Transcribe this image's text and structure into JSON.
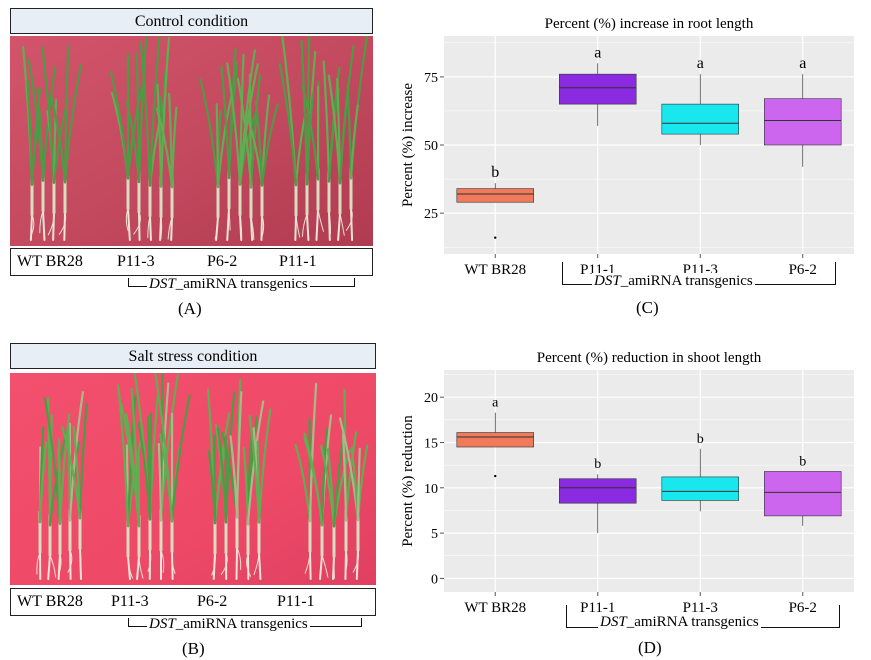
{
  "panels": {
    "A": {
      "title": "Control condition",
      "labels": [
        "WT BR28",
        "P11-3",
        "P6-2",
        "P11-1"
      ],
      "transgenic_prefix": "DST",
      "transgenic_suffix": "_amiRNA transgenics",
      "letter": "(A)"
    },
    "B": {
      "title": "Salt stress condition",
      "labels": [
        "WT BR28",
        "P11-3",
        "P6-2",
        "P11-1"
      ],
      "transgenic_prefix": "DST",
      "transgenic_suffix": "_amiRNA transgenics",
      "letter": "(B)"
    },
    "C": {
      "letter": "(C)",
      "transgenic_prefix": "DST",
      "transgenic_suffix": "_amiRNA transgenics"
    },
    "D": {
      "letter": "(D)",
      "transgenic_prefix": "DST",
      "transgenic_suffix": "_amiRNA transgenics"
    }
  },
  "chart_data": [
    {
      "type": "box",
      "title": "Percent (%) increase in root length",
      "ylabel": "Percent (%) increase",
      "xlabel": "",
      "categories": [
        "WT BR28",
        "P11-1",
        "P11-3",
        "P6-2"
      ],
      "yticks": [
        25,
        50,
        75
      ],
      "ylim": [
        10,
        90
      ],
      "grid": true,
      "boxes": [
        {
          "category": "WT BR28",
          "whisker_low": 29,
          "q1": 29,
          "median": 32,
          "q3": 34,
          "whisker_high": 36,
          "outliers": [
            16
          ],
          "color": "#f07a5a",
          "significance": "b"
        },
        {
          "category": "P11-1",
          "whisker_low": 57,
          "q1": 65,
          "median": 71,
          "q3": 76,
          "whisker_high": 80,
          "outliers": [],
          "color": "#8a2be2",
          "significance": "a"
        },
        {
          "category": "P11-3",
          "whisker_low": 50,
          "q1": 54,
          "median": 58,
          "q3": 65,
          "whisker_high": 76,
          "outliers": [],
          "color": "#18e8ee",
          "significance": "a"
        },
        {
          "category": "P6-2",
          "whisker_low": 42,
          "q1": 50,
          "median": 59,
          "q3": 67,
          "whisker_high": 76,
          "outliers": [],
          "color": "#cc66ee",
          "significance": "a"
        }
      ]
    },
    {
      "type": "box",
      "title": "Percent (%) reduction in shoot length",
      "ylabel": "Percent (%) reduction",
      "xlabel": "",
      "categories": [
        "WT BR28",
        "P11-1",
        "P11-3",
        "P6-2"
      ],
      "yticks": [
        0,
        5,
        10,
        15,
        20
      ],
      "ylim": [
        -1.5,
        23
      ],
      "grid": true,
      "boxes": [
        {
          "category": "WT BR28",
          "whisker_low": 14.5,
          "q1": 14.5,
          "median": 15.6,
          "q3": 16.1,
          "whisker_high": 18.3,
          "outliers": [
            11.3
          ],
          "color": "#f07a5a",
          "significance": "a"
        },
        {
          "category": "P11-1",
          "whisker_low": 5.0,
          "q1": 8.3,
          "median": 10.0,
          "q3": 11.0,
          "whisker_high": 11.5,
          "outliers": [],
          "color": "#8a2be2",
          "significance": "b"
        },
        {
          "category": "P11-3",
          "whisker_low": 7.4,
          "q1": 8.6,
          "median": 9.6,
          "q3": 11.2,
          "whisker_high": 14.3,
          "outliers": [],
          "color": "#18e8ee",
          "significance": "b"
        },
        {
          "category": "P6-2",
          "whisker_low": 5.8,
          "q1": 6.9,
          "median": 9.5,
          "q3": 11.8,
          "whisker_high": 11.8,
          "outliers": [],
          "color": "#cc66ee",
          "significance": "b"
        }
      ]
    }
  ]
}
